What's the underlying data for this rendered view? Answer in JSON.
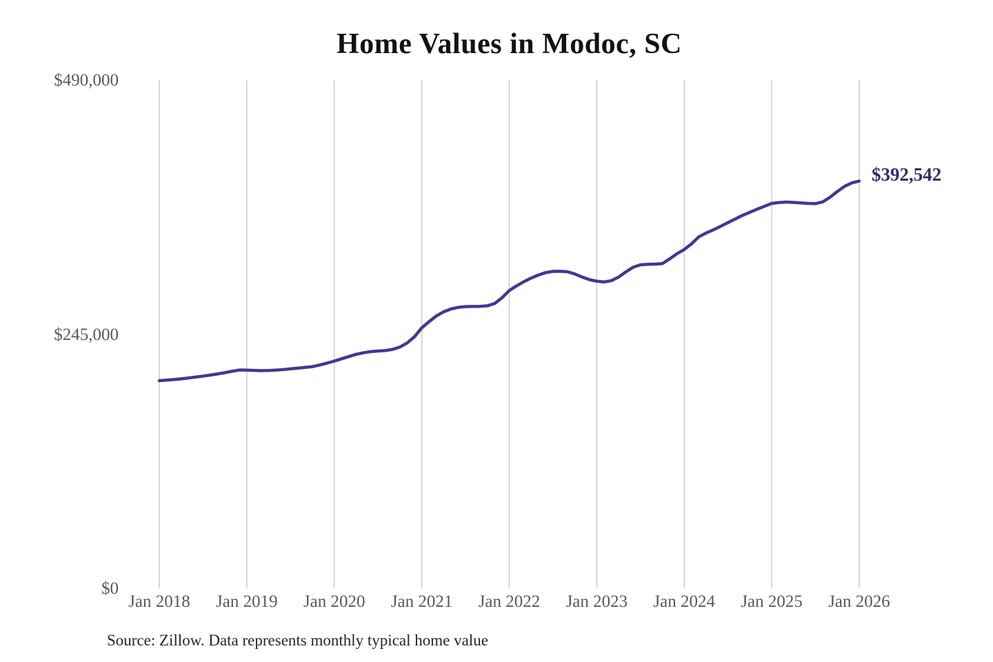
{
  "title": "Home Values in Modoc, SC",
  "end_label": "$392,542",
  "source_note": "Source: Zillow. Data represents monthly typical home value",
  "colors": {
    "line": "#3e3a93",
    "end_label": "#2f2d6e",
    "gridline": "#cccccc",
    "tick_text": "#595959",
    "title_text": "#121212",
    "source_text": "#262626",
    "background": "#ffffff"
  },
  "chart_data": {
    "type": "line",
    "title": "Home Values in Modoc, SC",
    "xlabel": "",
    "ylabel": "",
    "ylim": [
      0,
      490000
    ],
    "grid": "vertical-only",
    "legend": "none",
    "frequency": "monthly",
    "x_start": "2018-01",
    "x_end": "2026-01",
    "x_tick_labels": [
      "Jan 2018",
      "Jan 2019",
      "Jan 2020",
      "Jan 2021",
      "Jan 2022",
      "Jan 2023",
      "Jan 2024",
      "Jan 2025",
      "Jan 2026"
    ],
    "y_ticks": [
      {
        "label": "$490,000",
        "value": 490000
      },
      {
        "label": "$245,000",
        "value": 245000
      },
      {
        "label": "$0",
        "value": 0
      }
    ],
    "last_point_annotation": "$392,542",
    "series": [
      {
        "name": "Typical home value",
        "values": [
          200100,
          200600,
          201200,
          201900,
          202700,
          203600,
          204500,
          205500,
          206600,
          207800,
          209200,
          210400,
          210300,
          210000,
          209800,
          209900,
          210300,
          210800,
          211500,
          212200,
          212900,
          213600,
          215200,
          217000,
          219000,
          221200,
          223400,
          225500,
          227000,
          228100,
          228700,
          229100,
          230300,
          232500,
          236500,
          242500,
          251000,
          257000,
          262500,
          266500,
          269200,
          270800,
          271500,
          271700,
          271800,
          272300,
          274500,
          280000,
          287000,
          291500,
          295500,
          299000,
          302000,
          304300,
          305500,
          305600,
          305100,
          303000,
          300000,
          297500,
          296000,
          295300,
          296500,
          300000,
          305000,
          309500,
          311800,
          312300,
          312500,
          313000,
          317500,
          322500,
          326600,
          332000,
          338800,
          342500,
          345500,
          349000,
          352500,
          356000,
          359500,
          362500,
          365500,
          368200,
          371000,
          371800,
          372300,
          372000,
          371500,
          371000,
          370800,
          372500,
          377000,
          382500,
          387500,
          390800,
          392542
        ]
      }
    ]
  }
}
